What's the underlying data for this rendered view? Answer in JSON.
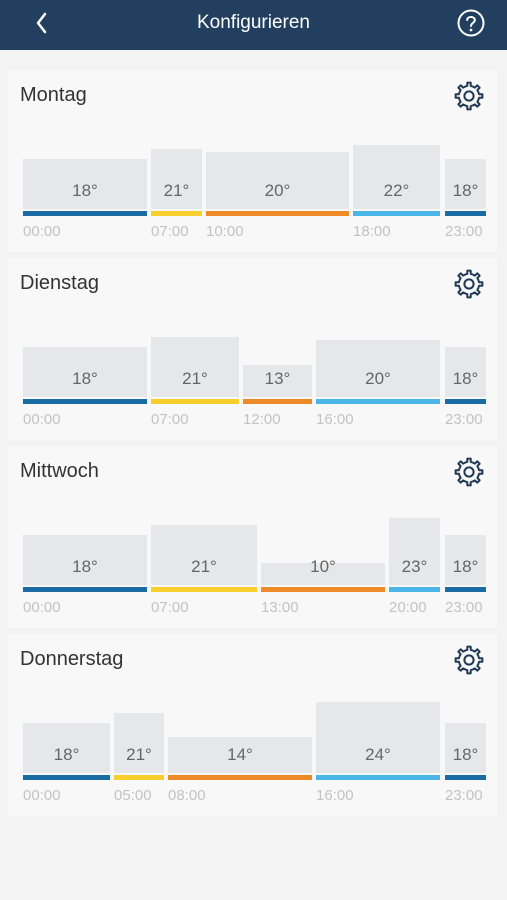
{
  "header": {
    "title": "Konfigurieren"
  },
  "colors": {
    "blue": "#1a6aa3",
    "yellow": "#f7cf2a",
    "orange": "#ee8a28",
    "light_blue": "#4bb5e8"
  },
  "days": [
    {
      "name": "Montag",
      "segments": [
        {
          "temp": "18°",
          "time": "00:00",
          "color": "blue"
        },
        {
          "temp": "21°",
          "time": "07:00",
          "color": "yellow"
        },
        {
          "temp": "20°",
          "time": "10:00",
          "color": "orange"
        },
        {
          "temp": "22°",
          "time": "18:00",
          "color": "light_blue"
        },
        {
          "temp": "18°",
          "time": "23:00",
          "color": "blue"
        }
      ]
    },
    {
      "name": "Dienstag",
      "segments": [
        {
          "temp": "18°",
          "time": "00:00",
          "color": "blue"
        },
        {
          "temp": "21°",
          "time": "07:00",
          "color": "yellow"
        },
        {
          "temp": "13°",
          "time": "12:00",
          "color": "orange"
        },
        {
          "temp": "20°",
          "time": "16:00",
          "color": "light_blue"
        },
        {
          "temp": "18°",
          "time": "23:00",
          "color": "blue"
        }
      ]
    },
    {
      "name": "Mittwoch",
      "segments": [
        {
          "temp": "18°",
          "time": "00:00",
          "color": "blue"
        },
        {
          "temp": "21°",
          "time": "07:00",
          "color": "yellow"
        },
        {
          "temp": "10°",
          "time": "13:00",
          "color": "orange"
        },
        {
          "temp": "23°",
          "time": "20:00",
          "color": "light_blue"
        },
        {
          "temp": "18°",
          "time": "23:00",
          "color": "blue"
        }
      ]
    },
    {
      "name": "Donnerstag",
      "segments": [
        {
          "temp": "18°",
          "time": "00:00",
          "color": "blue"
        },
        {
          "temp": "21°",
          "time": "05:00",
          "color": "yellow"
        },
        {
          "temp": "14°",
          "time": "08:00",
          "color": "orange"
        },
        {
          "temp": "24°",
          "time": "16:00",
          "color": "light_blue"
        },
        {
          "temp": "18°",
          "time": "23:00",
          "color": "blue"
        }
      ]
    }
  ]
}
